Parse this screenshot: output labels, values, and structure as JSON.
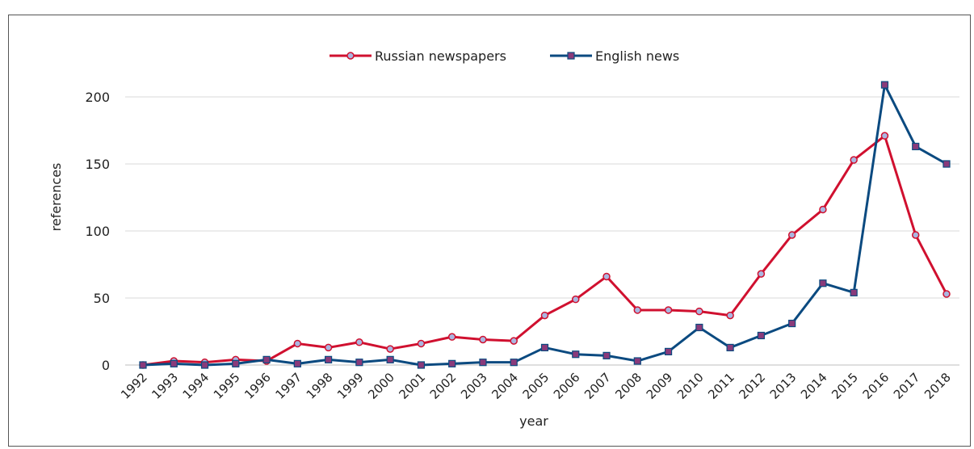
{
  "chart_data": {
    "type": "line",
    "xlabel": "year",
    "ylabel": "references",
    "ylim": [
      0,
      220
    ],
    "yticks": [
      0,
      50,
      100,
      150,
      200
    ],
    "x": [
      "1992",
      "1993",
      "1994",
      "1995",
      "1996",
      "1997",
      "1998",
      "1999",
      "2000",
      "2001",
      "2002",
      "2003",
      "2004",
      "2005",
      "2006",
      "2007",
      "2008",
      "2009",
      "2010",
      "2011",
      "2012",
      "2013",
      "2014",
      "2015",
      "2016",
      "2017",
      "2018"
    ],
    "grid": true,
    "legend_position": "top-center",
    "series": [
      {
        "name": "Russian newspapers",
        "color": "#d0102f",
        "marker": "circle",
        "marker_fill": "#aab6e0",
        "values": [
          0,
          3,
          2,
          4,
          3,
          16,
          13,
          17,
          12,
          16,
          21,
          19,
          18,
          37,
          49,
          66,
          41,
          41,
          40,
          37,
          68,
          97,
          116,
          153,
          171,
          97,
          53
        ]
      },
      {
        "name": "English news",
        "color": "#0b4a80",
        "marker": "square",
        "marker_fill": "#8a3a7a",
        "values": [
          0,
          1,
          0,
          1,
          4,
          1,
          4,
          2,
          4,
          0,
          1,
          2,
          2,
          13,
          8,
          7,
          3,
          10,
          28,
          13,
          22,
          31,
          61,
          54,
          209,
          163,
          150
        ]
      }
    ]
  }
}
